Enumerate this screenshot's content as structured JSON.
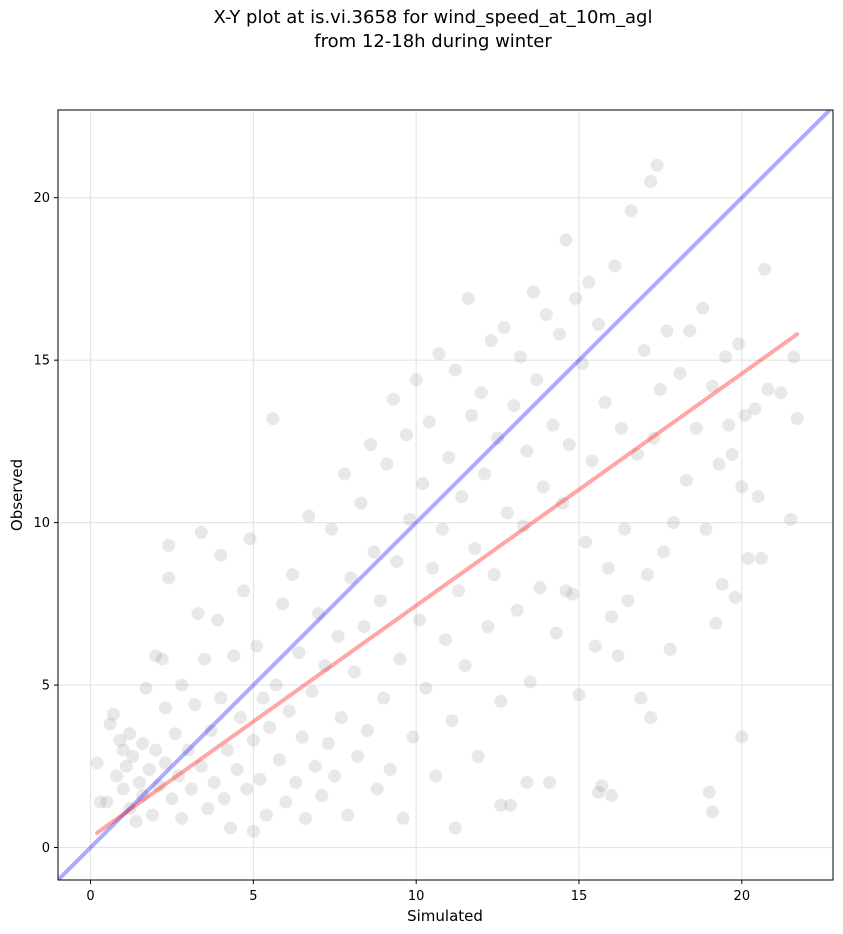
{
  "chart_data": {
    "type": "scatter",
    "title_line1": "X-Y plot at is.vi.3658 for wind_speed_at_10m_agl",
    "title_line2": "from 12-18h during winter",
    "xlabel": "Simulated",
    "ylabel": "Observed",
    "xlim": [
      -1.0,
      22.8
    ],
    "ylim": [
      -1.0,
      22.7
    ],
    "xticks": [
      0,
      5,
      10,
      15,
      20
    ],
    "yticks": [
      0,
      5,
      10,
      15,
      20
    ],
    "xtick_labels": [
      "0",
      "5",
      "10",
      "15",
      "20"
    ],
    "ytick_labels": [
      "0",
      "5",
      "10",
      "15",
      "20"
    ],
    "grid": true,
    "point_color": "#808080",
    "point_opacity": 0.18,
    "identity_line": {
      "x": [
        -1.0,
        22.8
      ],
      "y": [
        -1.0,
        22.8
      ],
      "color": "#0000ff",
      "opacity": 0.33
    },
    "regression_line": {
      "x": [
        0.2,
        21.7
      ],
      "y": [
        0.45,
        15.8
      ],
      "color": "#ff0000",
      "opacity": 0.35
    },
    "series": [
      {
        "points": [
          [
            0.2,
            2.6
          ],
          [
            0.3,
            1.4
          ],
          [
            0.5,
            1.4
          ],
          [
            0.6,
            3.8
          ],
          [
            0.7,
            4.1
          ],
          [
            0.8,
            2.2
          ],
          [
            0.9,
            3.3
          ],
          [
            1.0,
            3.0
          ],
          [
            1.0,
            1.8
          ],
          [
            1.1,
            2.5
          ],
          [
            1.2,
            3.5
          ],
          [
            1.2,
            1.2
          ],
          [
            1.3,
            2.8
          ],
          [
            1.4,
            0.8
          ],
          [
            1.5,
            2.0
          ],
          [
            1.6,
            3.2
          ],
          [
            1.6,
            1.6
          ],
          [
            1.7,
            4.9
          ],
          [
            1.8,
            2.4
          ],
          [
            1.9,
            1.0
          ],
          [
            2.0,
            5.9
          ],
          [
            2.0,
            3.0
          ],
          [
            2.1,
            1.9
          ],
          [
            2.2,
            5.8
          ],
          [
            2.3,
            4.3
          ],
          [
            2.3,
            2.6
          ],
          [
            2.4,
            9.3
          ],
          [
            2.4,
            8.3
          ],
          [
            2.5,
            1.5
          ],
          [
            2.6,
            3.5
          ],
          [
            2.7,
            2.2
          ],
          [
            2.8,
            5.0
          ],
          [
            2.8,
            0.9
          ],
          [
            3.0,
            3.0
          ],
          [
            3.1,
            1.8
          ],
          [
            3.2,
            4.4
          ],
          [
            3.3,
            7.2
          ],
          [
            3.4,
            9.7
          ],
          [
            3.4,
            2.5
          ],
          [
            3.5,
            5.8
          ],
          [
            3.6,
            1.2
          ],
          [
            3.7,
            3.6
          ],
          [
            3.8,
            2.0
          ],
          [
            3.9,
            7.0
          ],
          [
            4.0,
            9.0
          ],
          [
            4.0,
            4.6
          ],
          [
            4.1,
            1.5
          ],
          [
            4.2,
            3.0
          ],
          [
            4.3,
            0.6
          ],
          [
            4.4,
            5.9
          ],
          [
            4.5,
            2.4
          ],
          [
            4.6,
            4.0
          ],
          [
            4.7,
            7.9
          ],
          [
            4.8,
            1.8
          ],
          [
            4.9,
            9.5
          ],
          [
            5.0,
            3.3
          ],
          [
            5.0,
            0.5
          ],
          [
            5.1,
            6.2
          ],
          [
            5.2,
            2.1
          ],
          [
            5.3,
            4.6
          ],
          [
            5.4,
            1.0
          ],
          [
            5.5,
            3.7
          ],
          [
            5.6,
            13.2
          ],
          [
            5.7,
            5.0
          ],
          [
            5.8,
            2.7
          ],
          [
            5.9,
            7.5
          ],
          [
            6.0,
            1.4
          ],
          [
            6.1,
            4.2
          ],
          [
            6.2,
            8.4
          ],
          [
            6.3,
            2.0
          ],
          [
            6.4,
            6.0
          ],
          [
            6.5,
            3.4
          ],
          [
            6.6,
            0.9
          ],
          [
            6.7,
            10.2
          ],
          [
            6.8,
            4.8
          ],
          [
            6.9,
            2.5
          ],
          [
            7.0,
            7.2
          ],
          [
            7.1,
            1.6
          ],
          [
            7.2,
            5.6
          ],
          [
            7.3,
            3.2
          ],
          [
            7.4,
            9.8
          ],
          [
            7.5,
            2.2
          ],
          [
            7.6,
            6.5
          ],
          [
            7.7,
            4.0
          ],
          [
            7.8,
            11.5
          ],
          [
            7.9,
            1.0
          ],
          [
            8.0,
            8.3
          ],
          [
            8.1,
            5.4
          ],
          [
            8.2,
            2.8
          ],
          [
            8.3,
            10.6
          ],
          [
            8.4,
            6.8
          ],
          [
            8.5,
            3.6
          ],
          [
            8.6,
            12.4
          ],
          [
            8.7,
            9.1
          ],
          [
            8.8,
            1.8
          ],
          [
            8.9,
            7.6
          ],
          [
            9.0,
            4.6
          ],
          [
            9.1,
            11.8
          ],
          [
            9.2,
            2.4
          ],
          [
            9.3,
            13.8
          ],
          [
            9.4,
            8.8
          ],
          [
            9.5,
            5.8
          ],
          [
            9.6,
            0.9
          ],
          [
            9.7,
            12.7
          ],
          [
            9.8,
            10.1
          ],
          [
            9.9,
            3.4
          ],
          [
            10.0,
            14.4
          ],
          [
            10.1,
            7.0
          ],
          [
            10.2,
            11.2
          ],
          [
            10.3,
            4.9
          ],
          [
            10.4,
            13.1
          ],
          [
            10.5,
            8.6
          ],
          [
            10.6,
            2.2
          ],
          [
            10.7,
            15.2
          ],
          [
            10.8,
            9.8
          ],
          [
            10.9,
            6.4
          ],
          [
            11.0,
            12.0
          ],
          [
            11.1,
            3.9
          ],
          [
            11.2,
            14.7
          ],
          [
            11.3,
            7.9
          ],
          [
            11.4,
            10.8
          ],
          [
            11.5,
            5.6
          ],
          [
            11.6,
            16.9
          ],
          [
            11.7,
            13.3
          ],
          [
            11.8,
            9.2
          ],
          [
            11.9,
            2.8
          ],
          [
            12.0,
            14.0
          ],
          [
            12.1,
            11.5
          ],
          [
            12.2,
            6.8
          ],
          [
            12.3,
            15.6
          ],
          [
            12.4,
            8.4
          ],
          [
            12.5,
            12.6
          ],
          [
            12.6,
            4.5
          ],
          [
            12.7,
            16.0
          ],
          [
            12.8,
            10.3
          ],
          [
            12.9,
            1.3
          ],
          [
            13.0,
            13.6
          ],
          [
            13.1,
            7.3
          ],
          [
            13.2,
            15.1
          ],
          [
            13.3,
            9.9
          ],
          [
            13.4,
            12.2
          ],
          [
            13.5,
            5.1
          ],
          [
            13.6,
            17.1
          ],
          [
            13.7,
            14.4
          ],
          [
            13.8,
            8.0
          ],
          [
            13.9,
            11.1
          ],
          [
            14.0,
            16.4
          ],
          [
            14.1,
            2.0
          ],
          [
            14.2,
            13.0
          ],
          [
            14.3,
            6.6
          ],
          [
            14.4,
            15.8
          ],
          [
            14.5,
            10.6
          ],
          [
            14.6,
            18.7
          ],
          [
            14.7,
            12.4
          ],
          [
            14.8,
            7.8
          ],
          [
            14.9,
            16.9
          ],
          [
            15.0,
            4.7
          ],
          [
            15.1,
            14.9
          ],
          [
            15.2,
            9.4
          ],
          [
            15.3,
            17.4
          ],
          [
            15.4,
            11.9
          ],
          [
            15.5,
            6.2
          ],
          [
            15.6,
            16.1
          ],
          [
            15.7,
            1.9
          ],
          [
            15.8,
            13.7
          ],
          [
            15.9,
            8.6
          ],
          [
            16.0,
            7.1
          ],
          [
            16.1,
            17.9
          ],
          [
            16.2,
            5.9
          ],
          [
            16.3,
            12.9
          ],
          [
            16.4,
            9.8
          ],
          [
            16.5,
            7.6
          ],
          [
            16.6,
            19.6
          ],
          [
            16.8,
            12.1
          ],
          [
            16.9,
            4.6
          ],
          [
            17.0,
            15.3
          ],
          [
            17.1,
            8.4
          ],
          [
            17.2,
            20.5
          ],
          [
            17.3,
            12.6
          ],
          [
            17.4,
            21.0
          ],
          [
            17.5,
            14.1
          ],
          [
            17.6,
            9.1
          ],
          [
            17.7,
            15.9
          ],
          [
            17.8,
            6.1
          ],
          [
            17.9,
            10.0
          ],
          [
            18.1,
            14.6
          ],
          [
            18.3,
            11.3
          ],
          [
            18.4,
            15.9
          ],
          [
            18.6,
            12.9
          ],
          [
            18.8,
            16.6
          ],
          [
            18.9,
            9.8
          ],
          [
            19.0,
            1.7
          ],
          [
            19.1,
            14.2
          ],
          [
            19.2,
            6.9
          ],
          [
            19.3,
            11.8
          ],
          [
            19.4,
            8.1
          ],
          [
            19.5,
            15.1
          ],
          [
            19.6,
            13.0
          ],
          [
            19.7,
            12.1
          ],
          [
            19.8,
            7.7
          ],
          [
            19.9,
            15.5
          ],
          [
            20.0,
            11.1
          ],
          [
            20.1,
            13.3
          ],
          [
            20.2,
            8.9
          ],
          [
            20.4,
            13.5
          ],
          [
            20.5,
            10.8
          ],
          [
            20.6,
            8.9
          ],
          [
            20.7,
            17.8
          ],
          [
            20.8,
            14.1
          ],
          [
            21.2,
            14.0
          ],
          [
            21.5,
            10.1
          ],
          [
            21.6,
            15.1
          ],
          [
            21.7,
            13.2
          ],
          [
            20.0,
            3.4
          ],
          [
            19.1,
            1.1
          ],
          [
            17.2,
            4.0
          ],
          [
            16.0,
            1.6
          ],
          [
            15.6,
            1.7
          ],
          [
            14.6,
            7.9
          ],
          [
            13.4,
            2.0
          ],
          [
            12.6,
            1.3
          ],
          [
            11.2,
            0.6
          ]
        ]
      }
    ]
  }
}
